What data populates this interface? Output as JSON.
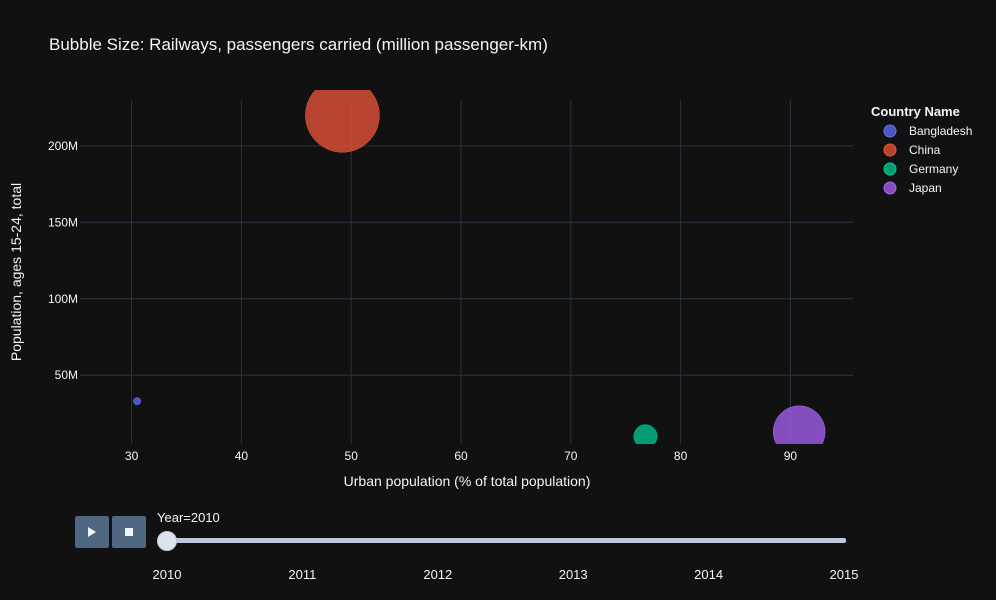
{
  "chart_data": {
    "type": "scatter",
    "subtype": "bubble",
    "title": "Bubble Size: Railways, passengers carried (million passenger-km)",
    "xlabel": "Urban population (% of total population)",
    "ylabel": "Population, ages 15-24, total",
    "xlim": [
      25.3,
      95.7
    ],
    "ylim": [
      5000000,
      230000000
    ],
    "x_ticks": [
      30,
      40,
      50,
      60,
      70,
      80,
      90
    ],
    "y_ticks": [
      {
        "value": 50000000,
        "label": "50M"
      },
      {
        "value": 100000000,
        "label": "100M"
      },
      {
        "value": 150000000,
        "label": "150M"
      },
      {
        "value": 200000000,
        "label": "200M"
      }
    ],
    "grid": true,
    "legend": {
      "title": "Country Name",
      "placement": "top-right"
    },
    "frame": "2010",
    "series": [
      {
        "name": "Bangladesh",
        "color": "#636efa",
        "x": 30.5,
        "y": 33000000,
        "size": 8000
      },
      {
        "name": "China",
        "color": "#ef553b",
        "x": 49.2,
        "y": 220000000,
        "size": 800000
      },
      {
        "name": "Germany",
        "color": "#00cc96",
        "x": 76.8,
        "y": 10000000,
        "size": 80000
      },
      {
        "name": "Japan",
        "color": "#ab63fa",
        "x": 90.8,
        "y": 13000000,
        "size": 395000
      }
    ]
  },
  "slider": {
    "current_label": "Year=2010",
    "current_index": 0,
    "steps": [
      "2010",
      "2011",
      "2012",
      "2013",
      "2014",
      "2015"
    ]
  },
  "controls": {
    "play_icon": "play-icon",
    "stop_icon": "stop-icon"
  }
}
